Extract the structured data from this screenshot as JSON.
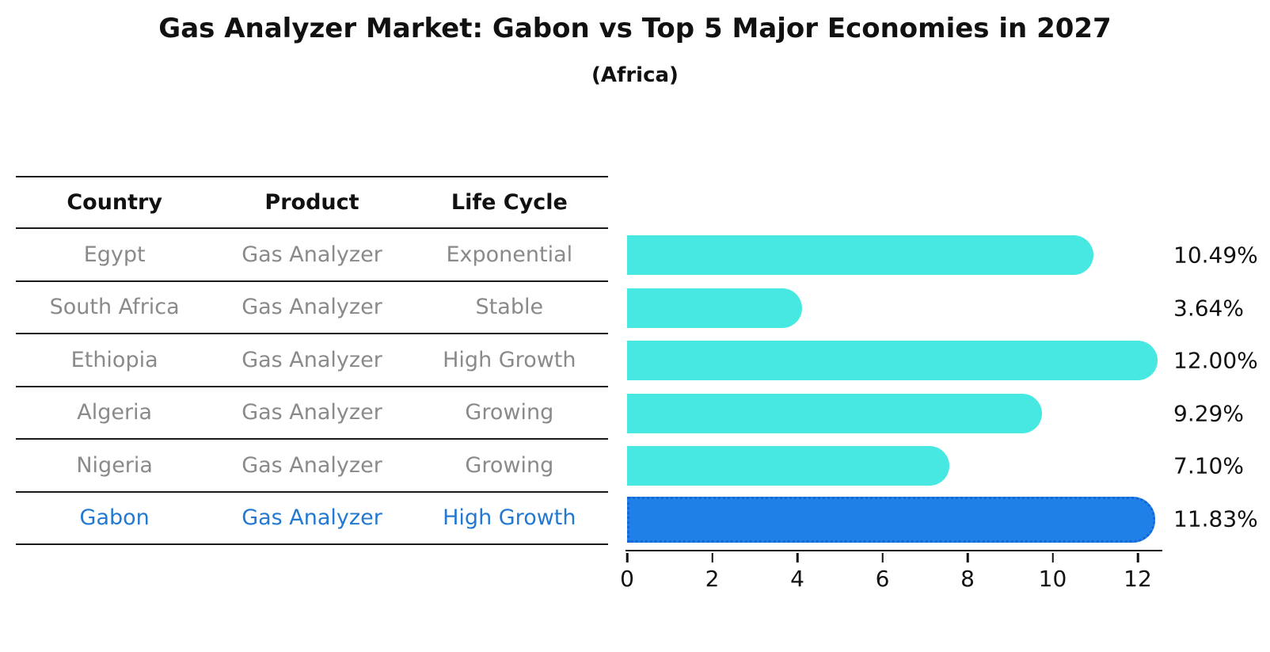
{
  "title": "Gas Analyzer Market: Gabon vs Top 5 Major Economies in 2027",
  "subtitle": "(Africa)",
  "table": {
    "headers": [
      "Country",
      "Product",
      "Life Cycle"
    ],
    "rows": [
      {
        "country": "Egypt",
        "product": "Gas Analyzer",
        "life_cycle": "Exponential"
      },
      {
        "country": "South Africa",
        "product": "Gas Analyzer",
        "life_cycle": "Stable"
      },
      {
        "country": "Ethiopia",
        "product": "Gas Analyzer",
        "life_cycle": "High Growth"
      },
      {
        "country": "Algeria",
        "product": "Gas Analyzer",
        "life_cycle": "Growing"
      },
      {
        "country": "Nigeria",
        "product": "Gas Analyzer",
        "life_cycle": "Growing"
      },
      {
        "country": "Gabon",
        "product": "Gas Analyzer",
        "life_cycle": "High Growth"
      }
    ]
  },
  "chart_data": {
    "type": "bar",
    "orientation": "horizontal",
    "title": "Gas Analyzer Market: Gabon vs Top 5 Major Economies in 2027",
    "subtitle": "(Africa)",
    "categories": [
      "Egypt",
      "South Africa",
      "Ethiopia",
      "Algeria",
      "Nigeria",
      "Gabon"
    ],
    "values": [
      10.49,
      3.64,
      12.0,
      9.29,
      7.1,
      11.83
    ],
    "value_labels": [
      "10.49%",
      "3.64%",
      "12.00%",
      "9.29%",
      "7.10%",
      "11.83%"
    ],
    "xticks": [
      "0",
      "2",
      "4",
      "6",
      "8",
      "10",
      "12"
    ],
    "xlim": [
      0,
      12.58
    ],
    "grid": false,
    "legend": false,
    "highlight_index": 5,
    "bar_color": "#46e8e1",
    "highlight_color": "#1f80e8",
    "highlight_edge_color": "#1465d8",
    "highlight_text_color": "#2379d2"
  }
}
